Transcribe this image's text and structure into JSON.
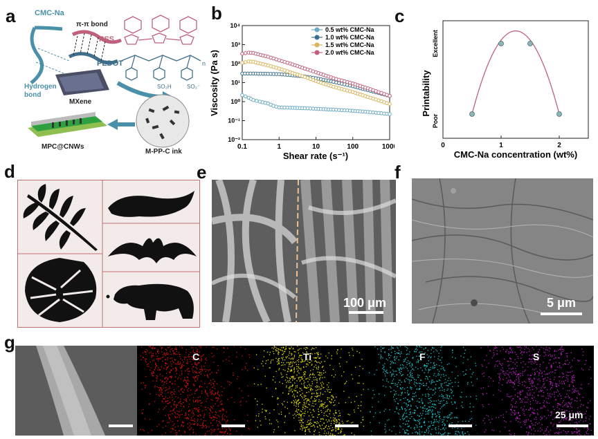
{
  "panels": {
    "a": "a",
    "b": "b",
    "c": "c",
    "d": "d",
    "e": "e",
    "f": "f",
    "g": "g"
  },
  "schematic": {
    "cmc": "CMC-Na",
    "pipi": "π-π bond",
    "pss": "PSS",
    "pedot": "PEDOT",
    "hydrogen": "Hydrogen\nbond",
    "mxene": "MXene",
    "mpc": "MPC@CNWs",
    "ink": "M-PP-C ink",
    "so3h": "SO₃H",
    "so3": "SO₃⁻",
    "n": "n"
  },
  "sem": {
    "e_scale": "100 μm",
    "f_scale": "5 μm",
    "g_scale": "25 μm"
  },
  "eds": {
    "labels": [
      "C",
      "Ti",
      "F",
      "S"
    ],
    "colors": [
      "#e01010",
      "#e6e200",
      "#18c8d0",
      "#c020c8"
    ]
  },
  "chart_data": [
    {
      "type": "line",
      "id": "b",
      "xlabel": "Shear rate (s⁻¹)",
      "ylabel": "Viscosity (Pa s)",
      "xscale": "log",
      "yscale": "log",
      "xlim": [
        0.1,
        1000
      ],
      "ylim": [
        0.01,
        10000
      ],
      "xticks": [
        "0.1",
        "1",
        "10",
        "100",
        "1000"
      ],
      "yticks": [
        "10⁻²",
        "10⁻¹",
        "10⁰",
        "10¹",
        "10²",
        "10³",
        "10⁴"
      ],
      "legend": "top-right",
      "series": [
        {
          "name": "0.5 wt% CMC-Na",
          "color": "#6aa9c4",
          "x": [
            0.1,
            0.15,
            0.2,
            0.3,
            0.5,
            0.7,
            1,
            2,
            5,
            10,
            30,
            100,
            300,
            1000
          ],
          "y": [
            2.2,
            1.6,
            1.2,
            1.0,
            0.8,
            0.6,
            0.5,
            0.48,
            0.45,
            0.42,
            0.38,
            0.33,
            0.28,
            0.22
          ]
        },
        {
          "name": "1.0 wt% CMC-Na",
          "color": "#3f6f8a",
          "x": [
            0.1,
            0.2,
            0.5,
            1,
            2,
            5,
            10,
            30,
            100,
            300,
            1000
          ],
          "y": [
            30,
            30,
            29,
            28,
            25,
            21,
            17,
            11,
            6.5,
            3.7,
            2.0
          ]
        },
        {
          "name": "1.5 wt% CMC-Na",
          "color": "#d9b45a",
          "x": [
            0.1,
            0.15,
            0.2,
            0.5,
            1,
            2,
            5,
            10,
            30,
            100,
            300,
            1000
          ],
          "y": [
            110,
            130,
            125,
            80,
            55,
            35,
            20,
            12,
            6,
            3.2,
            1.6,
            0.75
          ]
        },
        {
          "name": "2.0 wt% CMC-Na",
          "color": "#c0607a",
          "x": [
            0.1,
            0.15,
            0.2,
            0.5,
            1,
            2,
            5,
            10,
            30,
            100,
            300,
            1000
          ],
          "y": [
            330,
            380,
            360,
            230,
            150,
            100,
            55,
            35,
            17,
            9,
            4.5,
            2.0
          ]
        }
      ]
    },
    {
      "type": "line",
      "id": "c",
      "xlabel": "CMC-Na concentration (wt%)",
      "ylabel": "Printability",
      "xlim": [
        0,
        2.5
      ],
      "xticks": [
        "0",
        "1",
        "2"
      ],
      "yticks": [
        "Poor",
        "Excellent"
      ],
      "points": {
        "x": [
          0.5,
          1.0,
          1.5,
          2.0
        ],
        "y": [
          0,
          1,
          1,
          0
        ]
      }
    }
  ]
}
